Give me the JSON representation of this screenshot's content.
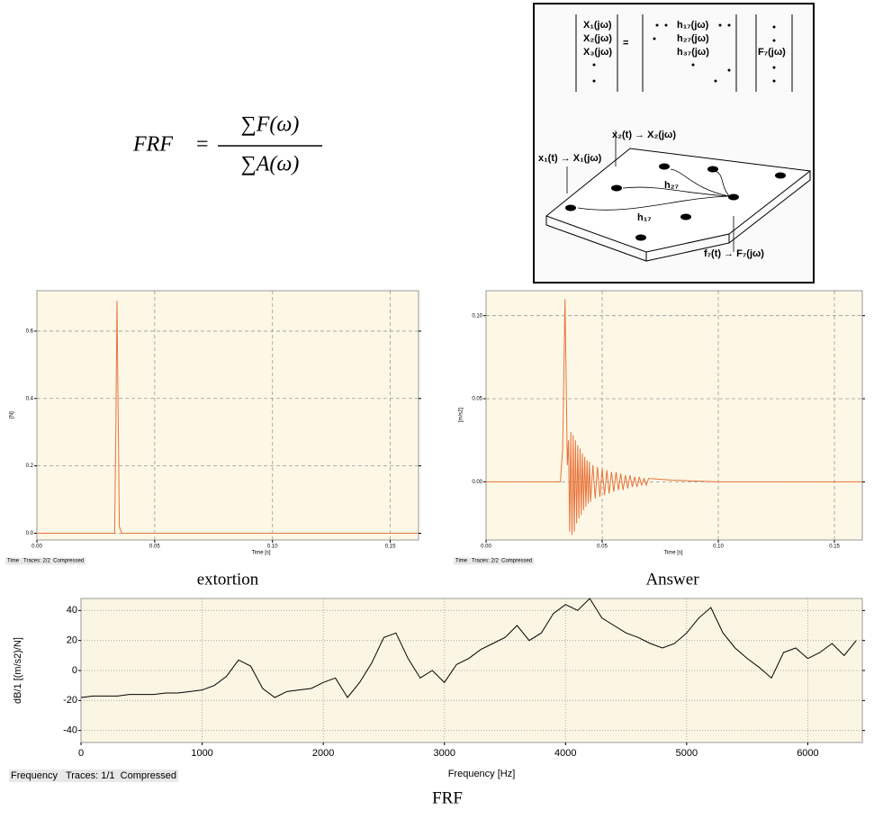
{
  "formula": {
    "lhs": "FRF",
    "equals": "=",
    "numerator": "∑F(ω)",
    "denominator": "∑A(ω)"
  },
  "diagram": {
    "matrix_left": [
      "X₁(jω)",
      "X₂(jω)",
      "X₃(jω)"
    ],
    "matrix_equals": "=",
    "matrix_middle": [
      "h₁₇(jω)",
      "h₂₇(jω)",
      "h₃₇(jω)"
    ],
    "matrix_right": "F₇(jω)",
    "plate_labels": [
      "x₂(t) → X₂(jω)",
      "x₁(t) → X₁(jω)",
      "h₂₇",
      "h₁₇",
      "f₇(t) → F₇(jω)"
    ]
  },
  "chart_data": [
    {
      "type": "line",
      "caption": "extortion",
      "footer": "Time   Traces: 2/2  Compressed",
      "xlabel": "Time [s]",
      "ylabel": "[N]",
      "color": "#e8733a",
      "grid": true,
      "xlim": [
        0,
        0.162
      ],
      "xticks": [
        {
          "value": 0,
          "label": "0.00"
        },
        0.05,
        {
          "value": 0.1,
          "label": "0.10"
        },
        0.15
      ],
      "ylim": [
        -0.02,
        0.72
      ],
      "yticks": [
        {
          "value": 0,
          "label": "0.0"
        },
        0.2,
        0.4,
        0.6
      ],
      "x": [
        0,
        0.033,
        0.0335,
        0.034,
        0.0345,
        0.035,
        0.036,
        0.162
      ],
      "values": [
        0,
        0,
        0.3,
        0.69,
        0.35,
        0.02,
        0,
        0
      ]
    },
    {
      "type": "line",
      "caption": "Answer",
      "footer": "Time   Traces: 2/2  Compressed",
      "xlabel": "Time [s]",
      "ylabel": "[m/s2]",
      "color": "#e8733a",
      "grid": true,
      "xlim": [
        0,
        0.162
      ],
      "xticks": [
        {
          "value": 0,
          "label": "0.00"
        },
        0.05,
        {
          "value": 0.1,
          "label": "0.10"
        },
        0.15
      ],
      "ylim": [
        -0.035,
        0.115
      ],
      "yticks": [
        {
          "value": 0,
          "label": "0.00"
        },
        0.05,
        {
          "value": 0.1,
          "label": "0.10"
        }
      ],
      "x": [
        0,
        0.032,
        0.033,
        0.034,
        0.035,
        0.0355,
        0.036,
        0.0365,
        0.037,
        0.0375,
        0.038,
        0.0385,
        0.039,
        0.0395,
        0.04,
        0.0405,
        0.041,
        0.0415,
        0.042,
        0.0425,
        0.043,
        0.0435,
        0.044,
        0.0445,
        0.045,
        0.046,
        0.047,
        0.048,
        0.049,
        0.05,
        0.051,
        0.052,
        0.053,
        0.054,
        0.055,
        0.056,
        0.057,
        0.058,
        0.059,
        0.06,
        0.061,
        0.062,
        0.063,
        0.064,
        0.065,
        0.066,
        0.067,
        0.068,
        0.069,
        0.07,
        0.08,
        0.1,
        0.162
      ],
      "values": [
        0,
        0,
        0.02,
        0.11,
        0.01,
        0.025,
        -0.03,
        0.03,
        -0.032,
        0.028,
        -0.03,
        0.025,
        -0.025,
        0.022,
        -0.022,
        0.02,
        -0.02,
        0.017,
        -0.017,
        0.015,
        -0.015,
        0.013,
        -0.013,
        0.012,
        -0.012,
        0.01,
        -0.01,
        0.009,
        -0.009,
        0.008,
        -0.008,
        0.007,
        -0.007,
        0.006,
        -0.006,
        0.006,
        -0.005,
        0.005,
        -0.005,
        0.004,
        -0.004,
        0.004,
        -0.003,
        0.003,
        -0.003,
        0.003,
        -0.002,
        0.002,
        -0.002,
        0.002,
        0.001,
        0,
        0
      ]
    },
    {
      "type": "line",
      "caption": "FRF",
      "footer": "Frequency   Traces: 1/1  Compressed",
      "xlabel": "Frequency [Hz]",
      "ylabel": "dB/1 [(m/s2)/N]",
      "color": "#000000",
      "grid": true,
      "xlim": [
        0,
        6450
      ],
      "xticks": [
        0,
        1000,
        2000,
        3000,
        4000,
        5000,
        6000
      ],
      "ylim": [
        -48,
        48
      ],
      "yticks": [
        -40,
        -20,
        0,
        20,
        40
      ],
      "x": [
        0,
        100,
        200,
        300,
        400,
        500,
        600,
        700,
        800,
        900,
        1000,
        1100,
        1200,
        1300,
        1400,
        1500,
        1600,
        1700,
        1800,
        1900,
        2000,
        2100,
        2200,
        2300,
        2400,
        2500,
        2600,
        2700,
        2800,
        2900,
        3000,
        3100,
        3200,
        3300,
        3400,
        3500,
        3600,
        3700,
        3800,
        3900,
        4000,
        4100,
        4200,
        4300,
        4400,
        4500,
        4600,
        4700,
        4800,
        4900,
        5000,
        5100,
        5200,
        5300,
        5400,
        5500,
        5600,
        5700,
        5800,
        5900,
        6000,
        6100,
        6200,
        6300,
        6400
      ],
      "values": [
        -18,
        -17,
        -17,
        -17,
        -16,
        -16,
        -16,
        -15,
        -15,
        -14,
        -13,
        -10,
        -4,
        7,
        3,
        -12,
        -18,
        -14,
        -13,
        -12,
        -8,
        -5,
        -18,
        -8,
        5,
        22,
        25,
        8,
        -5,
        0,
        -8,
        4,
        8,
        14,
        18,
        22,
        30,
        20,
        25,
        38,
        44,
        40,
        48,
        35,
        30,
        25,
        22,
        18,
        15,
        18,
        25,
        35,
        42,
        25,
        15,
        8,
        2,
        -5,
        12,
        15,
        8,
        12,
        18,
        10,
        20
      ]
    }
  ]
}
